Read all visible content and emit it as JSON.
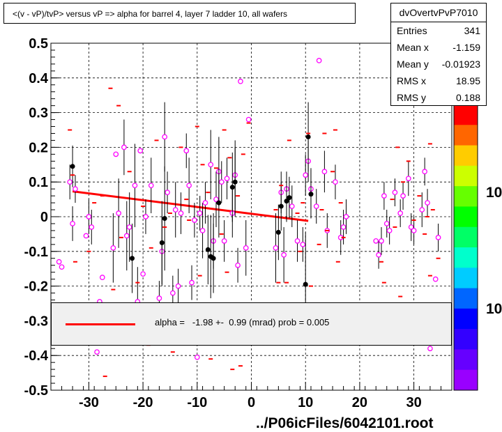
{
  "title": "<(v - vP)/tvP> versus   vP => alpha for barrel 4, layer 7 ladder 10, all wafers",
  "stats": {
    "name": "dvOvertvPvP7010",
    "rows": [
      {
        "label": "Entries",
        "value": "341"
      },
      {
        "label": "Mean x",
        "value": "-1.159"
      },
      {
        "label": "Mean y",
        "value": "-0.01923"
      },
      {
        "label": "RMS x",
        "value": "18.95"
      },
      {
        "label": "RMS y",
        "value": "0.188"
      }
    ]
  },
  "fit": {
    "text": "alpha =   -1.98 +-  0.99 (mrad) prob = 0.005",
    "line_color": "#ff0000"
  },
  "footer": "../P06icFiles/6042101.root",
  "palette_labels": [
    "10",
    "10"
  ],
  "chart_data": {
    "type": "scatter",
    "title": "<(v - vP)/tvP> versus   vP => alpha for barrel 4, layer 7 ladder 10, all wafers",
    "xlabel": "",
    "ylabel": "",
    "xlim": [
      -37,
      37
    ],
    "ylim": [
      -0.5,
      0.5
    ],
    "x_ticks": [
      -30,
      -20,
      -10,
      0,
      10,
      20,
      30
    ],
    "y_ticks": [
      -0.5,
      -0.4,
      -0.3,
      -0.2,
      -0.1,
      0,
      0.1,
      0.2,
      0.3,
      0.4,
      0.5
    ],
    "x_tick_labels": [
      "-30",
      "-20",
      "-10",
      "0",
      "10",
      "20",
      "30"
    ],
    "y_tick_labels": [
      "-0.5",
      "-0.4",
      "-0.3",
      "-0.2",
      "-0.1",
      "0",
      "0.1",
      "0.2",
      "0.3",
      "0.4",
      "0.5"
    ],
    "grid": true,
    "fit_line": {
      "x": [
        -33,
        10.5
      ],
      "y": [
        0.073,
        -0.012
      ]
    },
    "series": [
      {
        "style": "open-magenta-circles",
        "color": "#ff00ff",
        "points": [
          {
            "x": -35.5,
            "y": -0.13,
            "e": 0.0
          },
          {
            "x": -35.0,
            "y": -0.145,
            "e": 0.0
          },
          {
            "x": -33.5,
            "y": 0.1,
            "e": 0.05
          },
          {
            "x": -33.0,
            "y": -0.02,
            "e": 0.05
          },
          {
            "x": -32.5,
            "y": 0.08,
            "e": 0.04
          },
          {
            "x": -30.5,
            "y": -0.055,
            "e": 0.0
          },
          {
            "x": -30.0,
            "y": 0.0,
            "e": 0.05
          },
          {
            "x": -29.5,
            "y": -0.03,
            "e": 0.05
          },
          {
            "x": -28.5,
            "y": -0.39,
            "e": 0.0
          },
          {
            "x": -28.0,
            "y": -0.245,
            "e": 0.0
          },
          {
            "x": -27.5,
            "y": -0.175,
            "e": 0.0
          },
          {
            "x": -25.5,
            "y": -0.09,
            "e": 0.1
          },
          {
            "x": -25.0,
            "y": 0.18,
            "e": 0.0
          },
          {
            "x": -24.5,
            "y": 0.01,
            "e": 0.1
          },
          {
            "x": -23.5,
            "y": 0.2,
            "e": 0.08
          },
          {
            "x": -23.0,
            "y": -0.055,
            "e": 0.1
          },
          {
            "x": -22.5,
            "y": -0.03,
            "e": 0.1
          },
          {
            "x": -21.5,
            "y": 0.09,
            "e": 0.12
          },
          {
            "x": -21.0,
            "y": -0.245,
            "e": 0.1
          },
          {
            "x": -20.5,
            "y": 0.19,
            "e": 0.0
          },
          {
            "x": -20.0,
            "y": -0.165,
            "e": 0.0
          },
          {
            "x": -19.5,
            "y": 0.0,
            "e": 0.05
          },
          {
            "x": -18.5,
            "y": 0.09,
            "e": 0.08
          },
          {
            "x": -17.0,
            "y": -0.235,
            "e": 0.05
          },
          {
            "x": -16.5,
            "y": -0.1,
            "e": 0.1
          },
          {
            "x": -16.0,
            "y": 0.23,
            "e": 0.1
          },
          {
            "x": -15.5,
            "y": 0.07,
            "e": 0.06
          },
          {
            "x": -14.5,
            "y": -0.22,
            "e": 0.05
          },
          {
            "x": -14.0,
            "y": 0.02,
            "e": 0.08
          },
          {
            "x": -13.5,
            "y": -0.2,
            "e": 0.05
          },
          {
            "x": -13.0,
            "y": 0.01,
            "e": 0.06
          },
          {
            "x": -12.0,
            "y": 0.19,
            "e": 0.05
          },
          {
            "x": -11.5,
            "y": 0.09,
            "e": 0.08
          },
          {
            "x": -11.0,
            "y": -0.19,
            "e": 0.05
          },
          {
            "x": -10.5,
            "y": -0.01,
            "e": 0.05
          },
          {
            "x": -10.0,
            "y": -0.405,
            "e": 0.0
          },
          {
            "x": -9.5,
            "y": 0.01,
            "e": 0.05
          },
          {
            "x": -9.0,
            "y": -0.04,
            "e": 0.08
          },
          {
            "x": -8.5,
            "y": 0.04,
            "e": 0.06
          },
          {
            "x": -7.5,
            "y": 0.15,
            "e": 0.1
          },
          {
            "x": -7.0,
            "y": -0.07,
            "e": 0.08
          },
          {
            "x": -6.5,
            "y": 0.05,
            "e": 0.08
          },
          {
            "x": -6.0,
            "y": 0.13,
            "e": 0.1
          },
          {
            "x": -5.5,
            "y": 0.1,
            "e": 0.06
          },
          {
            "x": -5.0,
            "y": -0.07,
            "e": 0.06
          },
          {
            "x": -4.5,
            "y": 0.11,
            "e": 0.06
          },
          {
            "x": -3.5,
            "y": 0.01,
            "e": 0.07
          },
          {
            "x": -3.0,
            "y": 0.12,
            "e": 0.1
          },
          {
            "x": -2.5,
            "y": -0.14,
            "e": 0.05
          },
          {
            "x": -2.0,
            "y": 0.39,
            "e": 0.0
          },
          {
            "x": -1.0,
            "y": -0.09,
            "e": 0.08
          },
          {
            "x": -0.5,
            "y": 0.28,
            "e": 0.0
          },
          {
            "x": 4.5,
            "y": -0.09,
            "e": 0.1
          },
          {
            "x": 5.5,
            "y": 0.07,
            "e": 0.06
          },
          {
            "x": 6.0,
            "y": -0.11,
            "e": 0.08
          },
          {
            "x": 6.5,
            "y": 0.08,
            "e": 0.05
          },
          {
            "x": 7.5,
            "y": 0.03,
            "e": 0.06
          },
          {
            "x": 8.5,
            "y": -0.07,
            "e": 0.06
          },
          {
            "x": 9.5,
            "y": -0.08,
            "e": 0.05
          },
          {
            "x": 10.0,
            "y": 0.12,
            "e": 0.06
          },
          {
            "x": 10.5,
            "y": 0.16,
            "e": 0.06
          },
          {
            "x": 11.0,
            "y": 0.08,
            "e": 0.06
          },
          {
            "x": 12.0,
            "y": 0.03,
            "e": 0.05
          },
          {
            "x": 12.5,
            "y": 0.45,
            "e": 0.0
          },
          {
            "x": 13.5,
            "y": 0.13,
            "e": 0.06
          },
          {
            "x": 14.0,
            "y": -0.04,
            "e": 0.05
          },
          {
            "x": 15.5,
            "y": 0.1,
            "e": 0.05
          },
          {
            "x": 16.5,
            "y": -0.06,
            "e": 0.05
          },
          {
            "x": 17.0,
            "y": -0.03,
            "e": 0.05
          },
          {
            "x": 17.5,
            "y": 0.0,
            "e": 0.05
          },
          {
            "x": 23.0,
            "y": -0.07,
            "e": 0.0
          },
          {
            "x": 23.5,
            "y": -0.11,
            "e": 0.04
          },
          {
            "x": 24.0,
            "y": -0.07,
            "e": 0.04
          },
          {
            "x": 24.5,
            "y": 0.06,
            "e": 0.04
          },
          {
            "x": 25.0,
            "y": -0.02,
            "e": 0.04
          },
          {
            "x": 25.5,
            "y": -0.04,
            "e": 0.04
          },
          {
            "x": 26.5,
            "y": 0.07,
            "e": 0.04
          },
          {
            "x": 27.5,
            "y": 0.01,
            "e": 0.04
          },
          {
            "x": 28.0,
            "y": 0.06,
            "e": 0.04
          },
          {
            "x": 29.0,
            "y": 0.11,
            "e": 0.05
          },
          {
            "x": 29.5,
            "y": -0.03,
            "e": 0.04
          },
          {
            "x": 30.0,
            "y": -0.04,
            "e": 0.04
          },
          {
            "x": 31.5,
            "y": 0.02,
            "e": 0.05
          },
          {
            "x": 32.5,
            "y": 0.04,
            "e": 0.04
          },
          {
            "x": 33.0,
            "y": -0.38,
            "e": 0.0
          },
          {
            "x": 34.0,
            "y": -0.18,
            "e": 0.0
          },
          {
            "x": 34.5,
            "y": -0.06,
            "e": 0.04
          },
          {
            "x": 32.0,
            "y": 0.13,
            "e": 0.04
          }
        ]
      },
      {
        "style": "filled-black-circles",
        "color": "#000000",
        "points": [
          {
            "x": -33.0,
            "y": 0.145,
            "e": 0.06
          },
          {
            "x": -22.0,
            "y": -0.12,
            "e": 0.1
          },
          {
            "x": -16.5,
            "y": -0.075,
            "e": 0.12
          },
          {
            "x": -16.0,
            "y": -0.005,
            "e": 0.15
          },
          {
            "x": -8.0,
            "y": -0.095,
            "e": 0.1
          },
          {
            "x": -7.5,
            "y": -0.115,
            "e": 0.12
          },
          {
            "x": -7.0,
            "y": -0.12,
            "e": 0.1
          },
          {
            "x": -6.0,
            "y": 0.04,
            "e": 0.1
          },
          {
            "x": -3.5,
            "y": 0.085,
            "e": 0.1
          },
          {
            "x": -3.0,
            "y": 0.1,
            "e": 0.1
          },
          {
            "x": 5.0,
            "y": -0.045,
            "e": 0.08
          },
          {
            "x": 5.5,
            "y": 0.03,
            "e": 0.07
          },
          {
            "x": 6.5,
            "y": 0.045,
            "e": 0.06
          },
          {
            "x": 7.0,
            "y": 0.055,
            "e": 0.06
          },
          {
            "x": 10.0,
            "y": -0.195,
            "e": 0.15
          },
          {
            "x": 10.5,
            "y": 0.23,
            "e": 0.1
          },
          {
            "x": 11.0,
            "y": 0.065,
            "e": 0.07
          }
        ]
      },
      {
        "style": "red-dashes",
        "color": "#ff0000",
        "points": [
          {
            "x": -33.5,
            "y": 0.25
          },
          {
            "x": -33.0,
            "y": 0.12
          },
          {
            "x": -32.5,
            "y": -0.13
          },
          {
            "x": -30.0,
            "y": -0.1
          },
          {
            "x": -29.0,
            "y": 0.04
          },
          {
            "x": -27.5,
            "y": 0.06
          },
          {
            "x": -27.0,
            "y": -0.46
          },
          {
            "x": -26.0,
            "y": 0.37
          },
          {
            "x": -25.5,
            "y": -0.21
          },
          {
            "x": -24.5,
            "y": 0.32
          },
          {
            "x": -24.0,
            "y": -0.06
          },
          {
            "x": -22.5,
            "y": 0.13
          },
          {
            "x": -21.0,
            "y": -0.19
          },
          {
            "x": -20.0,
            "y": 0.03
          },
          {
            "x": -19.0,
            "y": -0.37
          },
          {
            "x": -18.5,
            "y": -0.09
          },
          {
            "x": -17.5,
            "y": 0.22
          },
          {
            "x": -16.0,
            "y": -0.03
          },
          {
            "x": -15.0,
            "y": 0.01
          },
          {
            "x": -14.5,
            "y": -0.39
          },
          {
            "x": -13.0,
            "y": 0.2
          },
          {
            "x": -12.0,
            "y": 0.05
          },
          {
            "x": -11.5,
            "y": -0.01
          },
          {
            "x": -10.0,
            "y": 0.26
          },
          {
            "x": -9.5,
            "y": -0.17
          },
          {
            "x": -9.0,
            "y": 0.15
          },
          {
            "x": -8.0,
            "y": 0.07
          },
          {
            "x": -7.5,
            "y": -0.41
          },
          {
            "x": -6.5,
            "y": 0.14
          },
          {
            "x": -5.5,
            "y": -0.05
          },
          {
            "x": -5.0,
            "y": 0.25
          },
          {
            "x": -4.5,
            "y": -0.16
          },
          {
            "x": -4.0,
            "y": 0.17
          },
          {
            "x": -3.5,
            "y": -0.44
          },
          {
            "x": -2.5,
            "y": 0.06
          },
          {
            "x": -2.0,
            "y": -0.43
          },
          {
            "x": -1.5,
            "y": 0.18
          },
          {
            "x": -0.5,
            "y": 0.27
          },
          {
            "x": 4.5,
            "y": 0.02
          },
          {
            "x": 5.0,
            "y": -0.19
          },
          {
            "x": 5.5,
            "y": 0.09
          },
          {
            "x": 6.5,
            "y": -0.19
          },
          {
            "x": 7.0,
            "y": 0.22
          },
          {
            "x": 8.5,
            "y": 0.01
          },
          {
            "x": 9.0,
            "y": -0.1
          },
          {
            "x": 9.5,
            "y": 0.04
          },
          {
            "x": 10.5,
            "y": 0.24
          },
          {
            "x": 11.0,
            "y": -0.2
          },
          {
            "x": 12.5,
            "y": -0.08
          },
          {
            "x": 13.0,
            "y": 0.02
          },
          {
            "x": 13.5,
            "y": 0.24
          },
          {
            "x": 14.0,
            "y": -0.04
          },
          {
            "x": 15.0,
            "y": 0.13
          },
          {
            "x": 15.5,
            "y": 0.25
          },
          {
            "x": 16.0,
            "y": -0.13
          },
          {
            "x": 16.5,
            "y": 0.04
          },
          {
            "x": 17.0,
            "y": -0.06
          },
          {
            "x": 24.0,
            "y": -0.13
          },
          {
            "x": 24.5,
            "y": -0.19
          },
          {
            "x": 26.0,
            "y": 0.05
          },
          {
            "x": 26.5,
            "y": -0.03
          },
          {
            "x": 27.0,
            "y": 0.2
          },
          {
            "x": 27.5,
            "y": -0.23
          },
          {
            "x": 28.0,
            "y": 0.1
          },
          {
            "x": 29.0,
            "y": 0.16
          },
          {
            "x": 30.0,
            "y": -0.01
          },
          {
            "x": 31.0,
            "y": 0.06
          },
          {
            "x": 32.0,
            "y": -0.05
          },
          {
            "x": 32.5,
            "y": 0.0
          },
          {
            "x": 33.0,
            "y": -0.17
          },
          {
            "x": 33.5,
            "y": 0.02
          },
          {
            "x": 34.5,
            "y": -0.12
          },
          {
            "x": 33.0,
            "y": 0.21
          }
        ]
      }
    ],
    "color_palette": [
      "#ff0000",
      "#ff6600",
      "#ffcc00",
      "#ccff00",
      "#66ff00",
      "#00ff00",
      "#00ff66",
      "#00ffcc",
      "#00ccff",
      "#0066ff",
      "#0000ff",
      "#3300ff",
      "#6600ff",
      "#9900ff"
    ]
  }
}
